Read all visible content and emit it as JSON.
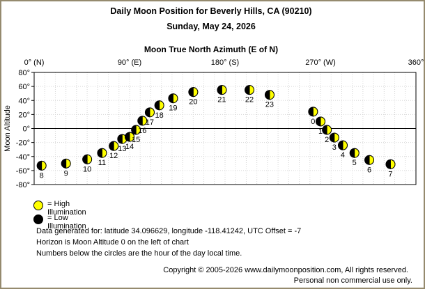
{
  "header": {
    "title": "Daily Moon Position for Beverly Hills, CA (90210)",
    "date": "Sunday, May 24, 2026"
  },
  "legend": {
    "high": "= High Illumination",
    "low": "= Low Illumination",
    "high_color": "#ffff00",
    "low_color": "#000000"
  },
  "info": {
    "line1": "Data generated for: latitude 34.096629, longitude -118.41242, UTC Offset = -7",
    "line2": "Horizon is Moon Altitude 0 on the left of chart",
    "line3": "Numbers below the circles are the hour of the day local time."
  },
  "footer": {
    "copyright": "Copyright © 2005-2026 www.dailymoonposition.com, All rights reserved.",
    "notice": "Personal non commercial use only."
  },
  "chart_data": {
    "type": "scatter",
    "xlabel": "Moon True North Azimuth (E of N)",
    "ylabel": "Moon Altitude",
    "xlim": [
      0,
      360
    ],
    "ylim": [
      -80,
      80
    ],
    "x_ticks": [
      {
        "value": 0,
        "label": "0° (N)"
      },
      {
        "value": 90,
        "label": "90° (E)"
      },
      {
        "value": 180,
        "label": "180° (S)"
      },
      {
        "value": 270,
        "label": "270° (W)"
      },
      {
        "value": 360,
        "label": "360°"
      }
    ],
    "y_ticks": [
      {
        "value": 80,
        "label": "80°"
      },
      {
        "value": 60,
        "label": "60°"
      },
      {
        "value": 40,
        "label": "40°"
      },
      {
        "value": 20,
        "label": "20°"
      },
      {
        "value": 0,
        "label": "0°"
      },
      {
        "value": -20,
        "label": "-20°"
      },
      {
        "value": -40,
        "label": "-40°"
      },
      {
        "value": -60,
        "label": "-60°"
      },
      {
        "value": -80,
        "label": "-80°"
      }
    ],
    "grid": true,
    "horizon_line": 0,
    "points": [
      {
        "hour": "0",
        "az": 263,
        "alt": 24
      },
      {
        "hour": "1",
        "az": 270,
        "alt": 10
      },
      {
        "hour": "2",
        "az": 276,
        "alt": -2
      },
      {
        "hour": "3",
        "az": 283,
        "alt": -13
      },
      {
        "hour": "4",
        "az": 291,
        "alt": -24
      },
      {
        "hour": "5",
        "az": 302,
        "alt": -35
      },
      {
        "hour": "6",
        "az": 316,
        "alt": -45
      },
      {
        "hour": "7",
        "az": 336,
        "alt": -51
      },
      {
        "hour": "8",
        "az": 7,
        "alt": -53
      },
      {
        "hour": "9",
        "az": 30,
        "alt": -50
      },
      {
        "hour": "10",
        "az": 50,
        "alt": -44
      },
      {
        "hour": "11",
        "az": 64,
        "alt": -35
      },
      {
        "hour": "12",
        "az": 75,
        "alt": -25
      },
      {
        "hour": "13",
        "az": 83,
        "alt": -15
      },
      {
        "hour": "14",
        "az": 90,
        "alt": -12
      },
      {
        "hour": "15",
        "az": 96,
        "alt": -2
      },
      {
        "hour": "16",
        "az": 102,
        "alt": 11
      },
      {
        "hour": "17",
        "az": 109,
        "alt": 23
      },
      {
        "hour": "18",
        "az": 118,
        "alt": 33
      },
      {
        "hour": "19",
        "az": 131,
        "alt": 43
      },
      {
        "hour": "20",
        "az": 150,
        "alt": 52
      },
      {
        "hour": "21",
        "az": 177,
        "alt": 55
      },
      {
        "hour": "22",
        "az": 203,
        "alt": 55
      },
      {
        "hour": "23",
        "az": 222,
        "alt": 48
      }
    ]
  }
}
